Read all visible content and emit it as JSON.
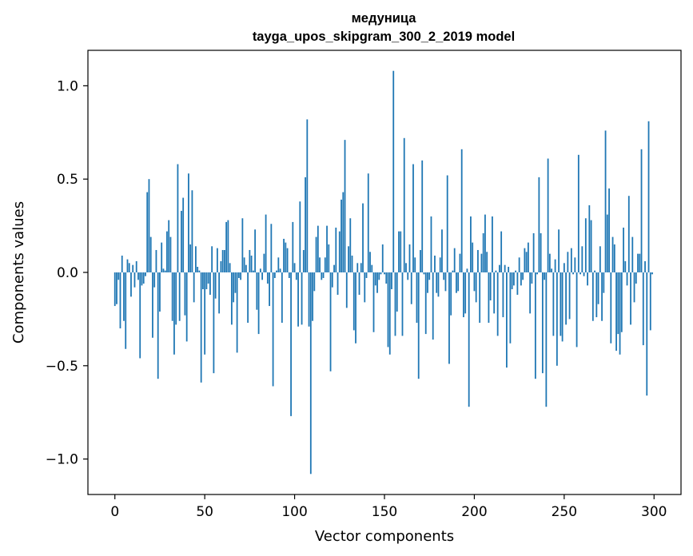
{
  "chart_data": {
    "type": "bar",
    "title_line1": "медуница",
    "title_line2": "tayga_upos_skipgram_300_2_2019 model",
    "xlabel": "Vector components",
    "ylabel": "Components values",
    "xlim": [
      -15,
      315
    ],
    "ylim": [
      -1.19,
      1.19
    ],
    "xticks": [
      0,
      50,
      100,
      150,
      200,
      250,
      300
    ],
    "xtick_labels": [
      "0",
      "50",
      "100",
      "150",
      "200",
      "250",
      "300"
    ],
    "yticks": [
      1.0,
      0.5,
      0.0,
      -0.5,
      -1.0
    ],
    "ytick_labels": [
      "1.0",
      "0.5",
      "0.0",
      "−0.5",
      "−1.0"
    ],
    "bar_color": "#1f77b4",
    "values": [
      -0.18,
      -0.17,
      -0.04,
      -0.3,
      0.09,
      -0.26,
      -0.41,
      0.07,
      0.05,
      -0.13,
      0.04,
      -0.08,
      0.06,
      -0.04,
      -0.46,
      -0.07,
      -0.06,
      -0.02,
      0.43,
      0.5,
      0.19,
      -0.35,
      -0.08,
      0.12,
      -0.57,
      -0.21,
      0.16,
      0.02,
      0.01,
      0.22,
      0.28,
      0.19,
      -0.26,
      -0.44,
      -0.28,
      0.58,
      -0.26,
      0.33,
      0.4,
      -0.23,
      -0.37,
      0.53,
      0.15,
      0.44,
      -0.16,
      0.14,
      0.03,
      0.01,
      -0.59,
      -0.09,
      -0.44,
      -0.09,
      -0.06,
      -0.12,
      0.14,
      -0.54,
      -0.14,
      0.13,
      -0.22,
      0.06,
      0.12,
      0.12,
      0.27,
      0.28,
      0.05,
      -0.28,
      -0.16,
      -0.11,
      -0.43,
      -0.03,
      -0.04,
      0.29,
      0.08,
      0.04,
      -0.27,
      0.12,
      0.09,
      0.01,
      0.23,
      -0.2,
      -0.33,
      0.02,
      -0.04,
      0.1,
      0.31,
      -0.06,
      -0.18,
      0.26,
      -0.61,
      -0.03,
      0.01,
      0.08,
      0.02,
      -0.27,
      0.18,
      0.16,
      0.13,
      -0.03,
      -0.77,
      0.27,
      0.05,
      -0.04,
      -0.29,
      0.38,
      -0.28,
      0.12,
      0.51,
      0.82,
      -0.29,
      -1.08,
      -0.26,
      -0.1,
      0.19,
      0.25,
      0.08,
      -0.04,
      -0.03,
      0.08,
      0.25,
      0.15,
      -0.53,
      -0.08,
      0.04,
      0.24,
      -0.12,
      0.22,
      0.39,
      0.43,
      0.71,
      -0.19,
      0.14,
      0.29,
      0.09,
      -0.31,
      -0.38,
      0.05,
      -0.12,
      0.05,
      0.37,
      -0.16,
      -0.03,
      0.53,
      0.11,
      0.04,
      -0.32,
      -0.07,
      -0.11,
      -0.04,
      -0.01,
      0.15,
      -0.01,
      -0.06,
      -0.4,
      -0.44,
      -0.09,
      1.08,
      -0.34,
      -0.21,
      0.22,
      0.22,
      -0.34,
      0.72,
      0.05,
      -0.04,
      0.15,
      -0.17,
      0.58,
      0.08,
      -0.27,
      -0.57,
      0.12,
      0.6,
      -0.01,
      -0.33,
      -0.11,
      -0.04,
      0.3,
      -0.36,
      0.09,
      -0.11,
      -0.13,
      0.08,
      0.23,
      -0.04,
      -0.1,
      0.52,
      -0.49,
      -0.23,
      0.01,
      0.13,
      -0.11,
      -0.1,
      0.1,
      0.66,
      -0.24,
      -0.22,
      0.02,
      -0.72,
      0.3,
      0.16,
      -0.1,
      -0.16,
      0.12,
      -0.27,
      0.1,
      0.21,
      0.31,
      0.11,
      -0.27,
      -0.15,
      0.3,
      -0.22,
      0.01,
      -0.34,
      0.04,
      0.22,
      -0.24,
      0.04,
      -0.51,
      0.03,
      -0.38,
      -0.09,
      -0.07,
      0.01,
      -0.12,
      0.08,
      -0.07,
      -0.04,
      0.13,
      0.11,
      0.16,
      -0.22,
      -0.06,
      0.21,
      -0.57,
      -0.01,
      0.51,
      0.21,
      -0.54,
      -0.04,
      -0.72,
      0.61,
      0.1,
      0.02,
      -0.34,
      0.07,
      -0.5,
      0.23,
      -0.34,
      -0.37,
      0.05,
      -0.28,
      0.11,
      -0.25,
      0.13,
      -0.01,
      0.08,
      -0.4,
      0.63,
      -0.01,
      0.14,
      -0.02,
      0.29,
      -0.07,
      0.36,
      0.28,
      -0.26,
      0.01,
      -0.24,
      -0.17,
      0.14,
      -0.26,
      -0.11,
      0.76,
      0.31,
      0.45,
      -0.38,
      0.19,
      0.15,
      -0.42,
      -0.33,
      -0.44,
      -0.32,
      0.24,
      0.06,
      -0.07,
      0.41,
      -0.28,
      0.19,
      -0.16,
      -0.06,
      0.1,
      0.1,
      0.66,
      -0.39,
      0.06,
      -0.66,
      0.81,
      -0.31,
      -0.01
    ]
  }
}
